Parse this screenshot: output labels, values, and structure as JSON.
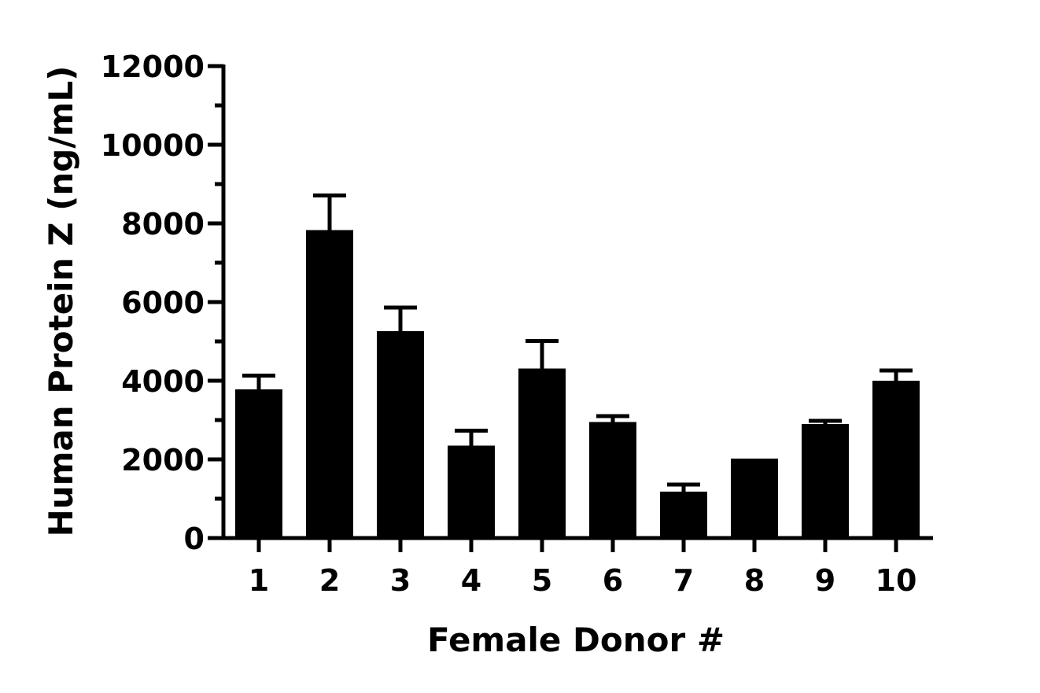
{
  "chart_data": {
    "type": "bar",
    "title": "",
    "xlabel": "Female Donor #",
    "ylabel": "Human Protein Z (ng/mL)",
    "categories": [
      "1",
      "2",
      "3",
      "4",
      "5",
      "6",
      "7",
      "8",
      "9",
      "10"
    ],
    "values": [
      3780,
      7830,
      5260,
      2350,
      4310,
      2950,
      1180,
      2020,
      2900,
      4000
    ],
    "error_upper": [
      350,
      880,
      600,
      380,
      700,
      150,
      180,
      0,
      80,
      260
    ],
    "ylim": [
      0,
      12000
    ],
    "yticks": [
      0,
      2000,
      4000,
      6000,
      8000,
      10000,
      12000
    ],
    "ytick_labels": [
      "0",
      "2000",
      "4000",
      "6000",
      "8000",
      "10000",
      "12000"
    ],
    "grid": false,
    "bar_color": "#000000"
  }
}
